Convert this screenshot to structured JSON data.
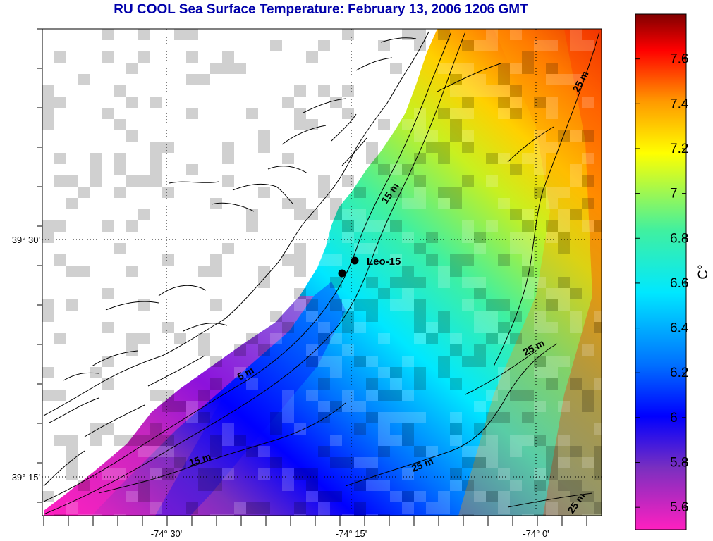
{
  "title": "RU COOL  Sea Surface Temperature:  February 13, 2006 1206 GMT",
  "map": {
    "x_tick_labels": [
      "-74° 30'",
      "-74° 15'",
      "-74° 0'"
    ],
    "y_tick_labels": [
      "39° 30'",
      "39° 15'"
    ],
    "station": {
      "name": "Leo-15"
    },
    "contours": [
      {
        "label": "15 m"
      },
      {
        "label": "5 m"
      },
      {
        "label": "15 m"
      },
      {
        "label": "25 m"
      },
      {
        "label": "25 m"
      },
      {
        "label": "25 m"
      },
      {
        "label": "25 m"
      }
    ]
  },
  "colorbar": {
    "unit": "C°",
    "ticks": [
      "7.6",
      "7.4",
      "7.2",
      "7",
      "6.8",
      "6.6",
      "6.4",
      "6.2",
      "6",
      "5.8",
      "5.6"
    ],
    "min": 5.5,
    "max": 7.8,
    "colors": [
      "#ff20c0",
      "#7a2fc0",
      "#0000ff",
      "#0070ff",
      "#00e8ff",
      "#40f0a0",
      "#ffff00",
      "#ff9a00",
      "#ff0000",
      "#800000"
    ]
  }
}
